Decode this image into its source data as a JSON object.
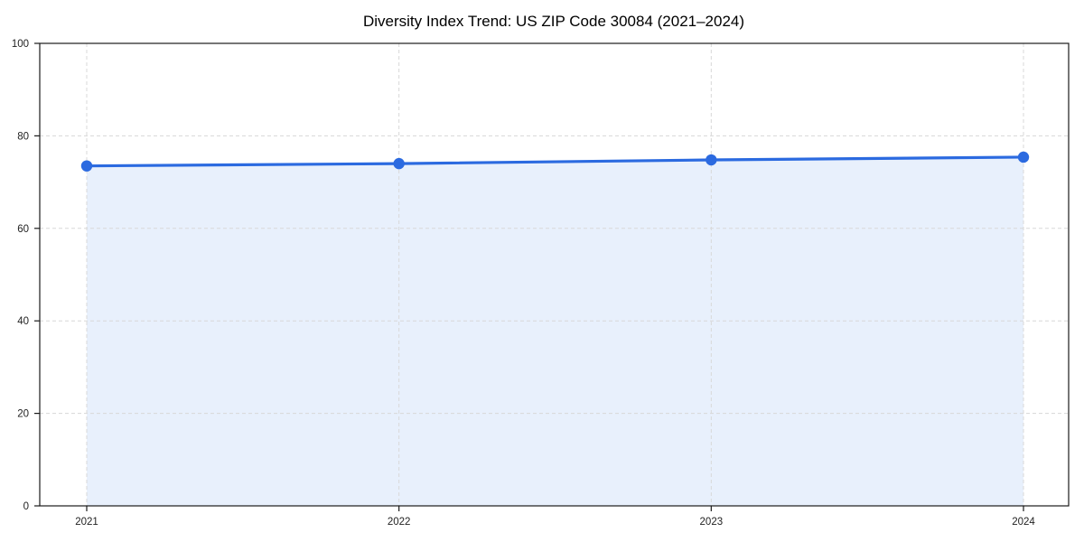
{
  "chart_data": {
    "type": "area",
    "title": "Diversity Index Trend: US ZIP Code 30084 (2021–2024)",
    "categories": [
      "2021",
      "2022",
      "2023",
      "2024"
    ],
    "series": [
      {
        "name": "Diversity Index",
        "values": [
          73.5,
          74.0,
          74.8,
          75.4
        ]
      }
    ],
    "xlabel": "",
    "ylabel": "",
    "ylim": [
      0,
      100
    ],
    "yticks": [
      0,
      20,
      40,
      60,
      80,
      100
    ],
    "grid": true,
    "grid_style": "dashed",
    "legend": "none",
    "colors": {
      "line": "#2b6ae0",
      "marker": "#2b6ae0",
      "fill": "#e8f0fc",
      "grid": "#d8d8d8",
      "axis": "#1a1a1a",
      "tick_label": "#222222",
      "title": "#000000",
      "background": "#ffffff"
    }
  }
}
